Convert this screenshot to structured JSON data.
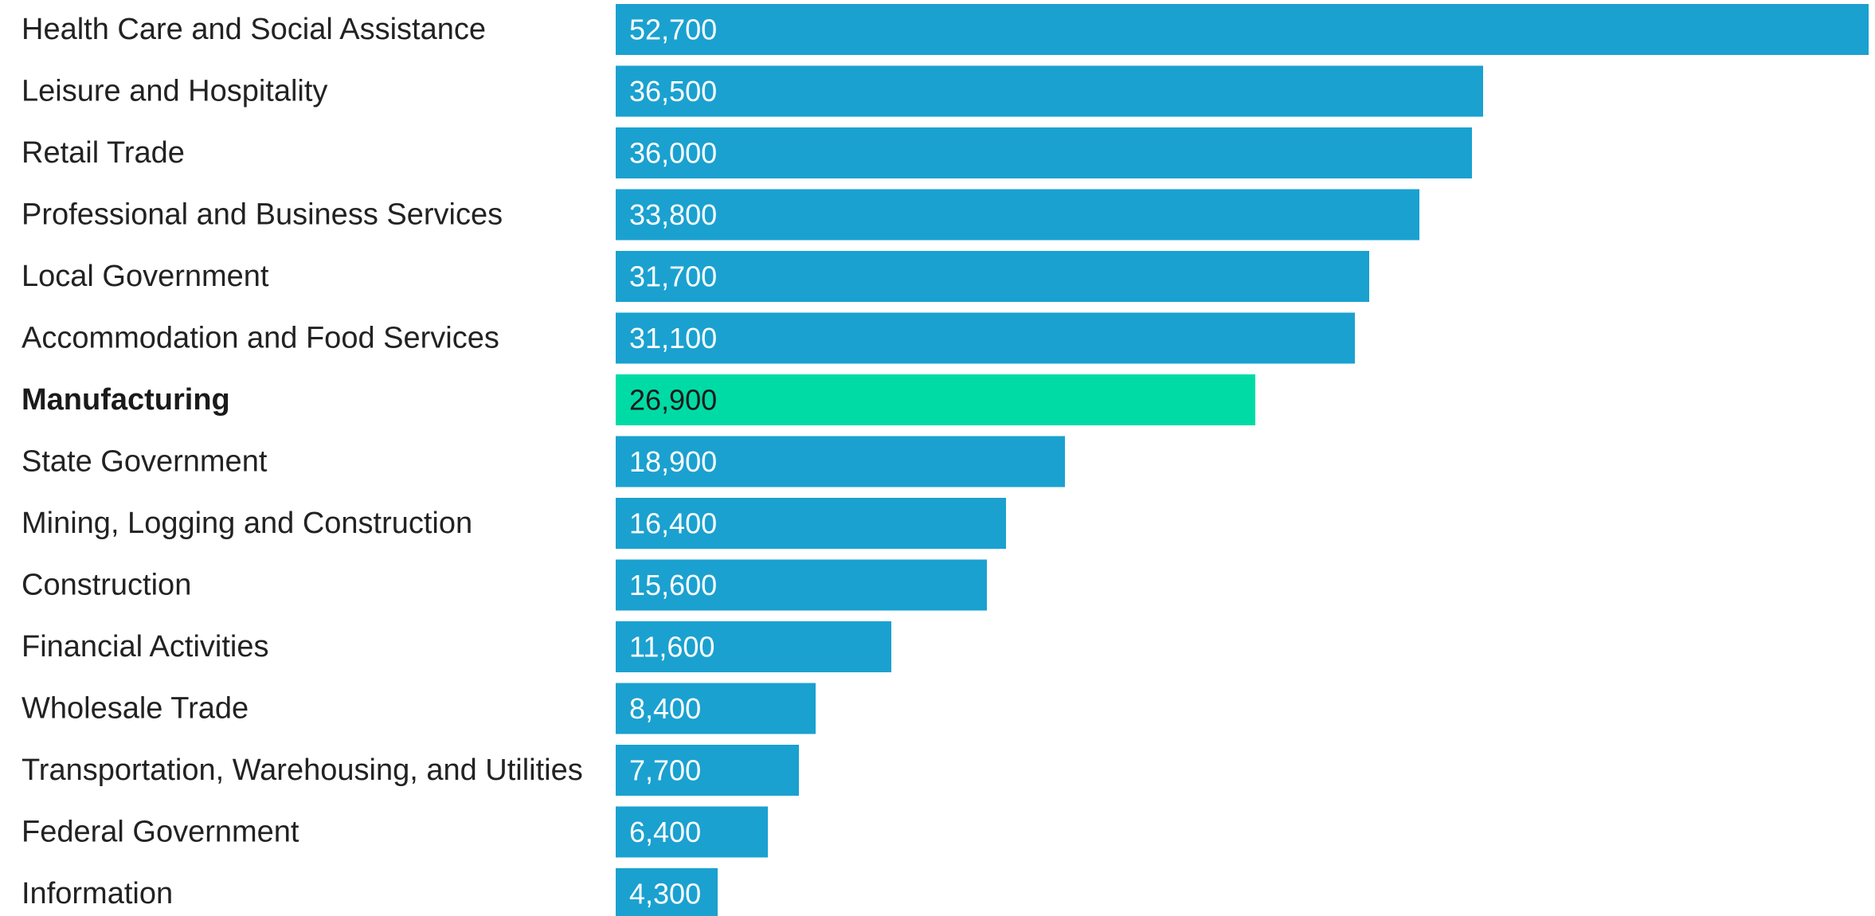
{
  "chart_data": {
    "type": "bar",
    "orientation": "horizontal",
    "categories": [
      "Health Care and Social Assistance",
      "Leisure and Hospitality",
      "Retail Trade",
      "Professional and Business Services",
      "Local Government",
      "Accommodation and Food Services",
      "Manufacturing",
      "State Government",
      "Mining, Logging and Construction",
      "Construction",
      "Financial Activities",
      "Wholesale Trade",
      "Transportation, Warehousing, and Utilities",
      "Federal Government",
      "Information"
    ],
    "values": [
      52700,
      36500,
      36000,
      33800,
      31700,
      31100,
      26900,
      18900,
      16400,
      15600,
      11600,
      8400,
      7700,
      6400,
      4300
    ],
    "value_labels": [
      "52,700",
      "36,500",
      "36,000",
      "33,800",
      "31,700",
      "31,100",
      "26,900",
      "18,900",
      "16,400",
      "15,600",
      "11,600",
      "8,400",
      "7,700",
      "6,400",
      "4,300"
    ],
    "highlight_category": "Manufacturing",
    "xlim": [
      0,
      52700
    ],
    "grid": false,
    "legend": "none",
    "colors": {
      "bar": "#1aa1d0",
      "highlight": "#00dba6",
      "value_text": "#ffffff",
      "highlight_value_text": "#1a1a1a"
    }
  }
}
